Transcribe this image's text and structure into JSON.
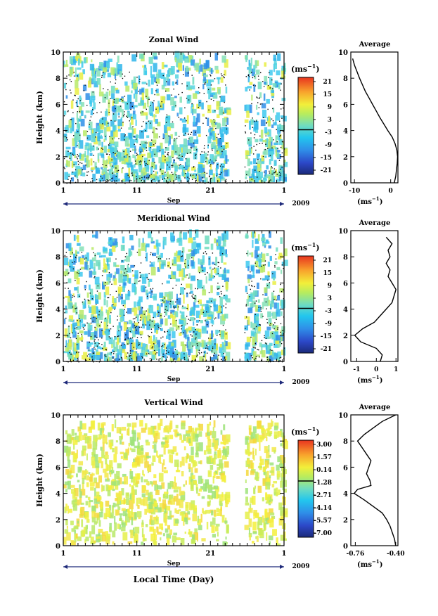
{
  "chart_data": [
    {
      "type": "heatmap",
      "title": "Zonal Wind",
      "ylabel": "Height (km)",
      "ylim": [
        0,
        10
      ],
      "yticks": [
        "0",
        "2",
        "4",
        "6",
        "8",
        "10"
      ],
      "xticks": [
        "1",
        "11",
        "21",
        "1"
      ],
      "month_label": "Sep",
      "year_label": "2009",
      "colorbar": {
        "unit": "(ms",
        "unit_exp": "−1",
        "unit_close": ")",
        "tick_labels": [
          "21",
          "15",
          "9",
          "3",
          "-3",
          "-9",
          "-15",
          "-21"
        ],
        "range": [
          -24,
          24
        ]
      },
      "average_profile": {
        "title": "Average",
        "xlabel": "(ms",
        "xlabel_exp": "−1",
        "xlabel_close": ")",
        "xticks": [
          "-10",
          "0"
        ],
        "xlim": [
          -11,
          2
        ],
        "yticks": [
          "0",
          "2",
          "4",
          "6",
          "8",
          "10"
        ],
        "height_km": [
          0,
          0.5,
          1,
          1.5,
          2,
          2.5,
          3,
          3.5,
          4,
          4.5,
          5,
          5.5,
          6,
          6.5,
          7,
          7.5,
          8,
          8.5,
          9,
          9.5
        ],
        "wind": [
          1.0,
          1.4,
          1.6,
          1.8,
          1.9,
          1.7,
          1.2,
          0.4,
          -0.8,
          -1.9,
          -3.0,
          -4.0,
          -5.0,
          -6.0,
          -7.0,
          -7.8,
          -8.6,
          -9.3,
          -10.0,
          -10.5
        ]
      }
    },
    {
      "type": "heatmap",
      "title": "Meridional Wind",
      "ylabel": "Height (km)",
      "ylim": [
        0,
        10
      ],
      "yticks": [
        "0",
        "2",
        "4",
        "6",
        "8",
        "10"
      ],
      "xticks": [
        "1",
        "11",
        "21",
        "1"
      ],
      "month_label": "Sep",
      "year_label": "2009",
      "colorbar": {
        "unit": "(ms",
        "unit_exp": "−1",
        "unit_close": ")",
        "tick_labels": [
          "21",
          "15",
          "9",
          "3",
          "-3",
          "-9",
          "-15",
          "-21"
        ],
        "range": [
          -24,
          24
        ]
      },
      "average_profile": {
        "title": "Average",
        "xlabel": "(ms",
        "xlabel_exp": "−1",
        "xlabel_close": ")",
        "xticks": [
          "-1",
          "0",
          "1"
        ],
        "xlim": [
          -1.3,
          1.1
        ],
        "yticks": [
          "0",
          "2",
          "4",
          "6",
          "8",
          "10"
        ],
        "height_km": [
          0,
          0.5,
          1,
          1.5,
          2,
          2.5,
          3,
          3.5,
          4,
          4.5,
          5,
          5.5,
          6,
          6.5,
          7,
          7.5,
          8,
          8.5,
          9,
          9.5
        ],
        "wind": [
          0.2,
          0.3,
          0.0,
          -0.8,
          -1.1,
          -0.7,
          -0.1,
          0.2,
          0.5,
          0.8,
          0.9,
          1.0,
          0.8,
          0.6,
          0.7,
          0.5,
          0.7,
          0.6,
          0.8,
          0.5
        ]
      }
    },
    {
      "type": "heatmap",
      "title": "Vertical Wind",
      "ylabel": "Height (km)",
      "xlabel": "Local Time (Day)",
      "ylim": [
        0,
        10
      ],
      "yticks": [
        "0",
        "2",
        "4",
        "6",
        "8",
        "10"
      ],
      "xticks": [
        "1",
        "11",
        "21",
        "1"
      ],
      "month_label": "Sep",
      "year_label": "2009",
      "colorbar": {
        "unit": "(ms",
        "unit_exp": "−1",
        "unit_close": ")",
        "tick_labels": [
          "3.00",
          "1.57",
          "0.14",
          "-1.28",
          "-2.71",
          "-4.14",
          "-5.57",
          "-7.00"
        ],
        "range": [
          -7.7,
          3.7
        ]
      },
      "average_profile": {
        "title": "Average",
        "xlabel": "(ms",
        "xlabel_exp": "−1",
        "xlabel_close": ")",
        "xticks": [
          "-0.76",
          "-0.40"
        ],
        "xlim": [
          -0.8,
          -0.38
        ],
        "yticks": [
          "0",
          "2",
          "4",
          "6",
          "8",
          "10"
        ],
        "height_km": [
          0,
          0.5,
          1,
          1.5,
          2,
          2.5,
          3,
          3.5,
          4,
          4.3,
          4.6,
          5,
          5.5,
          6,
          6.5,
          7,
          7.5,
          8,
          8.5,
          9,
          9.5,
          10
        ],
        "wind": [
          -0.4,
          -0.41,
          -0.43,
          -0.45,
          -0.48,
          -0.52,
          -0.6,
          -0.68,
          -0.77,
          -0.74,
          -0.62,
          -0.63,
          -0.66,
          -0.64,
          -0.62,
          -0.66,
          -0.7,
          -0.74,
          -0.68,
          -0.6,
          -0.52,
          -0.4
        ]
      }
    }
  ]
}
